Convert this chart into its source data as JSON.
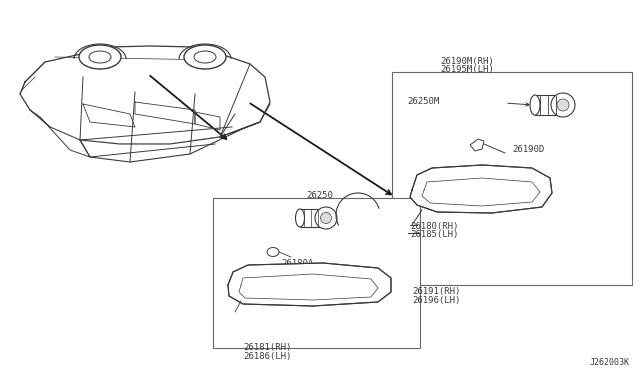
{
  "bg_color": "#ffffff",
  "diagram_id": "J262003K",
  "labels": {
    "upper_top1": "26190M(RH)",
    "upper_top2": "26195M(LH)",
    "upper_bulb": "26250M",
    "upper_socket": "26190D",
    "upper_bottom1": "26191(RH)",
    "upper_bottom2": "26196(LH)",
    "lower_bulb": "26250",
    "lower_socket": "26180A",
    "lower_bottom1": "26181(RH)",
    "lower_bottom2": "26186(LH)",
    "mid_label1": "26180(RH)",
    "mid_label2": "26185(LH)"
  },
  "font_size": 6.5,
  "line_color": "#3a3a3a",
  "arrow_color": "#1a1a1a"
}
